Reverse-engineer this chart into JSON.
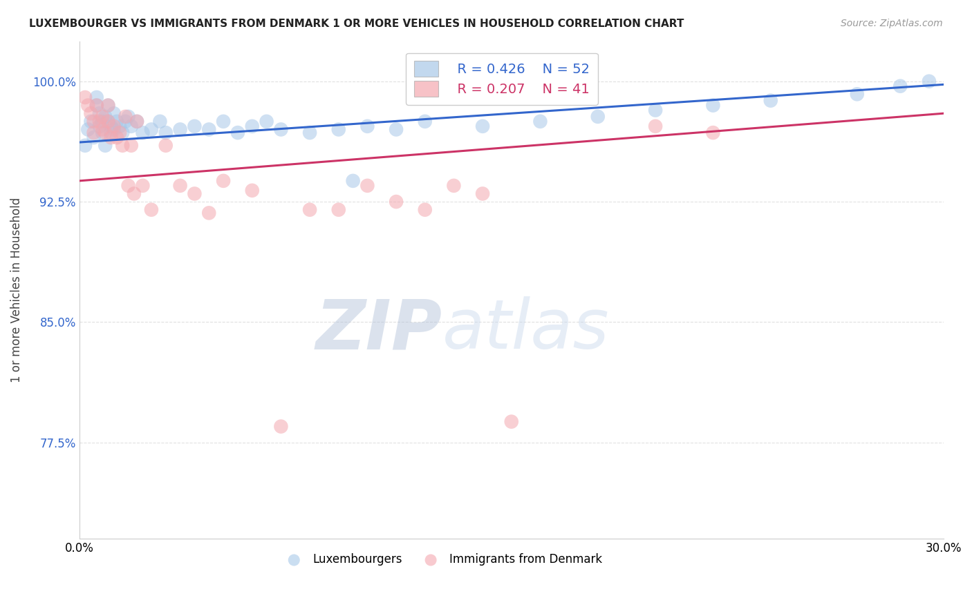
{
  "title": "LUXEMBOURGER VS IMMIGRANTS FROM DENMARK 1 OR MORE VEHICLES IN HOUSEHOLD CORRELATION CHART",
  "source": "Source: ZipAtlas.com",
  "ylabel": "1 or more Vehicles in Household",
  "xlim": [
    0.0,
    0.3
  ],
  "ylim": [
    0.715,
    1.025
  ],
  "yticks": [
    0.775,
    0.85,
    0.925,
    1.0
  ],
  "ytick_labels": [
    "77.5%",
    "85.0%",
    "92.5%",
    "100.0%"
  ],
  "xticks": [
    0.0,
    0.05,
    0.1,
    0.15,
    0.2,
    0.25,
    0.3
  ],
  "xtick_labels": [
    "0.0%",
    "",
    "",
    "",
    "",
    "",
    "30.0%"
  ],
  "legend_blue_r": "R = 0.426",
  "legend_blue_n": "N = 52",
  "legend_pink_r": "R = 0.207",
  "legend_pink_n": "N = 41",
  "blue_color": "#a8c8e8",
  "pink_color": "#f4a8b0",
  "line_blue_color": "#3366cc",
  "line_pink_color": "#cc3366",
  "blue_scatter_x": [
    0.002,
    0.003,
    0.004,
    0.005,
    0.006,
    0.006,
    0.007,
    0.007,
    0.008,
    0.008,
    0.009,
    0.009,
    0.01,
    0.01,
    0.011,
    0.011,
    0.012,
    0.012,
    0.013,
    0.014,
    0.015,
    0.016,
    0.017,
    0.018,
    0.02,
    0.022,
    0.025,
    0.028,
    0.03,
    0.035,
    0.04,
    0.045,
    0.05,
    0.055,
    0.06,
    0.065,
    0.07,
    0.08,
    0.09,
    0.095,
    0.1,
    0.11,
    0.12,
    0.14,
    0.16,
    0.18,
    0.2,
    0.22,
    0.24,
    0.27,
    0.285,
    0.295
  ],
  "blue_scatter_y": [
    0.96,
    0.97,
    0.975,
    0.965,
    0.99,
    0.985,
    0.972,
    0.98,
    0.968,
    0.975,
    0.96,
    0.978,
    0.975,
    0.985,
    0.972,
    0.968,
    0.98,
    0.97,
    0.975,
    0.972,
    0.968,
    0.975,
    0.978,
    0.972,
    0.975,
    0.968,
    0.97,
    0.975,
    0.968,
    0.97,
    0.972,
    0.97,
    0.975,
    0.968,
    0.972,
    0.975,
    0.97,
    0.968,
    0.97,
    0.938,
    0.972,
    0.97,
    0.975,
    0.972,
    0.975,
    0.978,
    0.982,
    0.985,
    0.988,
    0.992,
    0.997,
    1.0
  ],
  "pink_scatter_x": [
    0.002,
    0.003,
    0.004,
    0.005,
    0.005,
    0.006,
    0.007,
    0.008,
    0.008,
    0.009,
    0.01,
    0.01,
    0.011,
    0.012,
    0.013,
    0.014,
    0.015,
    0.016,
    0.017,
    0.018,
    0.019,
    0.02,
    0.022,
    0.025,
    0.03,
    0.035,
    0.04,
    0.045,
    0.05,
    0.06,
    0.07,
    0.08,
    0.09,
    0.1,
    0.11,
    0.12,
    0.13,
    0.14,
    0.15,
    0.2,
    0.22
  ],
  "pink_scatter_y": [
    0.99,
    0.985,
    0.98,
    0.975,
    0.968,
    0.985,
    0.975,
    0.97,
    0.978,
    0.968,
    0.975,
    0.985,
    0.965,
    0.972,
    0.965,
    0.968,
    0.96,
    0.978,
    0.935,
    0.96,
    0.93,
    0.975,
    0.935,
    0.92,
    0.96,
    0.935,
    0.93,
    0.918,
    0.938,
    0.932,
    0.785,
    0.92,
    0.92,
    0.935,
    0.925,
    0.92,
    0.935,
    0.93,
    0.788,
    0.972,
    0.968
  ],
  "blue_line_x0": 0.0,
  "blue_line_x1": 0.3,
  "blue_line_y0": 0.962,
  "blue_line_y1": 0.998,
  "pink_line_x0": 0.0,
  "pink_line_x1": 0.3,
  "pink_line_y0": 0.938,
  "pink_line_y1": 0.98,
  "watermark_zip": "ZIP",
  "watermark_atlas": "atlas",
  "background_color": "#ffffff",
  "grid_color": "#e0e0e0"
}
